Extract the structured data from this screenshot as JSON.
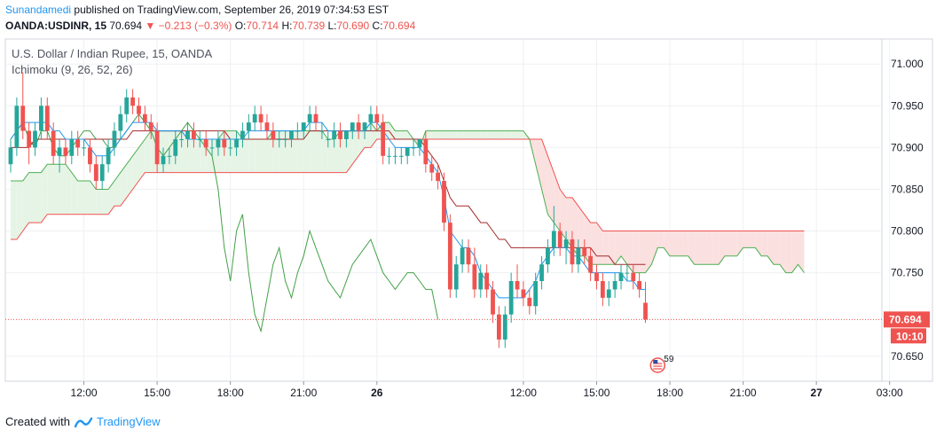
{
  "header": {
    "author": "Sunandamedi",
    "published": "published on TradingView.com, September 26, 2019 07:34:53 EST"
  },
  "symbol": {
    "ticker": "OANDA:USDINR, 15",
    "last": "70.694",
    "arrow": "▼",
    "change": "−0.213 (−0.3%)",
    "o_label": "O:",
    "o": "70.714",
    "h_label": "H:",
    "h": "70.739",
    "l_label": "L:",
    "l": "70.690",
    "c_label": "C:",
    "c": "70.694"
  },
  "footer": {
    "created": "Created with",
    "brand": "TradingView"
  },
  "colors": {
    "up": "#26a69a",
    "down": "#ef5350",
    "tenkan": "#2196f3",
    "kijun": "#a52a2a",
    "spanA": "#4caf50",
    "spanB": "#ef5350",
    "lagging": "#43a047",
    "cloudBull": "#e6f4e6",
    "cloudBear": "#fbe0e0",
    "priceLine": "#ef5350"
  },
  "chart_data": {
    "type": "candlestick",
    "title": "U.S. Dollar / Indian Rupee, 15, OANDA",
    "indicator": "Ichimoku (9, 26, 52, 26)",
    "ylim": [
      70.62,
      71.03
    ],
    "y_ticks": [
      "71.000",
      "70.950",
      "70.900",
      "70.850",
      "70.800",
      "70.750",
      "70.650"
    ],
    "y_tick_values": [
      71.0,
      70.95,
      70.9,
      70.85,
      70.8,
      70.75,
      70.65
    ],
    "x_ticks": [
      "12:00",
      "15:00",
      "18:00",
      "21:00",
      "26",
      "12:00",
      "15:00",
      "18:00",
      "21:00",
      "27",
      "03:00"
    ],
    "x_tick_bars": [
      12,
      24,
      36,
      48,
      60,
      84,
      96,
      108,
      120,
      132,
      144
    ],
    "current_price": 70.694,
    "price_label": "70.694",
    "countdown": "10:10",
    "event_icon_label": "59",
    "candles": [
      [
        70.88,
        70.91,
        70.87,
        70.9
      ],
      [
        70.9,
        70.96,
        70.89,
        70.95
      ],
      [
        70.95,
        70.99,
        70.91,
        70.92
      ],
      [
        70.92,
        70.93,
        70.88,
        70.9
      ],
      [
        70.9,
        70.93,
        70.89,
        70.92
      ],
      [
        70.92,
        70.96,
        70.91,
        70.95
      ],
      [
        70.95,
        70.96,
        70.91,
        70.92
      ],
      [
        70.92,
        70.93,
        70.88,
        70.89
      ],
      [
        70.89,
        70.91,
        70.87,
        70.9
      ],
      [
        70.9,
        70.91,
        70.88,
        70.89
      ],
      [
        70.89,
        70.92,
        70.88,
        70.91
      ],
      [
        70.91,
        70.92,
        70.89,
        70.9
      ],
      [
        70.9,
        70.91,
        70.89,
        70.9
      ],
      [
        70.9,
        70.91,
        70.87,
        70.88
      ],
      [
        70.88,
        70.89,
        70.85,
        70.86
      ],
      [
        70.86,
        70.89,
        70.85,
        70.88
      ],
      [
        70.88,
        70.91,
        70.87,
        70.9
      ],
      [
        70.9,
        70.93,
        70.89,
        70.92
      ],
      [
        70.92,
        70.95,
        70.91,
        70.94
      ],
      [
        70.94,
        70.97,
        70.93,
        70.96
      ],
      [
        70.96,
        70.97,
        70.94,
        70.95
      ],
      [
        70.95,
        70.96,
        70.93,
        70.94
      ],
      [
        70.94,
        70.95,
        70.92,
        70.93
      ],
      [
        70.93,
        70.94,
        70.91,
        70.92
      ],
      [
        70.92,
        70.93,
        70.87,
        70.88
      ],
      [
        70.88,
        70.9,
        70.87,
        70.89
      ],
      [
        70.89,
        70.9,
        70.88,
        70.89
      ],
      [
        70.89,
        70.92,
        70.88,
        70.91
      ],
      [
        70.91,
        70.92,
        70.9,
        70.91
      ],
      [
        70.91,
        70.93,
        70.9,
        70.92
      ],
      [
        70.92,
        70.93,
        70.9,
        70.91
      ],
      [
        70.91,
        70.92,
        70.9,
        70.91
      ],
      [
        70.91,
        70.92,
        70.89,
        70.9
      ],
      [
        70.9,
        70.91,
        70.89,
        70.9
      ],
      [
        70.9,
        70.92,
        70.89,
        70.91
      ],
      [
        70.91,
        70.92,
        70.89,
        70.9
      ],
      [
        70.9,
        70.91,
        70.89,
        70.9
      ],
      [
        70.9,
        70.92,
        70.89,
        70.91
      ],
      [
        70.91,
        70.93,
        70.9,
        70.92
      ],
      [
        70.92,
        70.94,
        70.91,
        70.93
      ],
      [
        70.93,
        70.95,
        70.92,
        70.94
      ],
      [
        70.94,
        70.95,
        70.92,
        70.93
      ],
      [
        70.93,
        70.94,
        70.91,
        70.92
      ],
      [
        70.92,
        70.93,
        70.9,
        70.91
      ],
      [
        70.91,
        70.92,
        70.9,
        70.91
      ],
      [
        70.91,
        70.92,
        70.9,
        70.91
      ],
      [
        70.91,
        70.92,
        70.9,
        70.92
      ],
      [
        70.92,
        70.93,
        70.91,
        70.92
      ],
      [
        70.92,
        70.93,
        70.91,
        70.93
      ],
      [
        70.93,
        70.95,
        70.92,
        70.94
      ],
      [
        70.94,
        70.95,
        70.92,
        70.93
      ],
      [
        70.92,
        70.93,
        70.91,
        70.92
      ],
      [
        70.91,
        70.92,
        70.9,
        70.91
      ],
      [
        70.91,
        70.93,
        70.9,
        70.92
      ],
      [
        70.92,
        70.93,
        70.9,
        70.91
      ],
      [
        70.91,
        70.92,
        70.9,
        70.92
      ],
      [
        70.92,
        70.93,
        70.91,
        70.93
      ],
      [
        70.93,
        70.94,
        70.91,
        70.92
      ],
      [
        70.92,
        70.93,
        70.91,
        70.93
      ],
      [
        70.93,
        70.95,
        70.92,
        70.94
      ],
      [
        70.94,
        70.95,
        70.92,
        70.93
      ],
      [
        70.93,
        70.94,
        70.88,
        70.89
      ],
      [
        70.89,
        70.9,
        70.88,
        70.89
      ],
      [
        70.89,
        70.9,
        70.88,
        70.89
      ],
      [
        70.89,
        70.9,
        70.88,
        70.89
      ],
      [
        70.89,
        70.9,
        70.88,
        70.9
      ],
      [
        70.9,
        70.91,
        70.89,
        70.9
      ],
      [
        70.9,
        70.91,
        70.89,
        70.91
      ],
      [
        70.91,
        70.92,
        70.87,
        70.88
      ],
      [
        70.88,
        70.89,
        70.86,
        70.87
      ],
      [
        70.87,
        70.88,
        70.85,
        70.86
      ],
      [
        70.86,
        70.87,
        70.8,
        70.81
      ],
      [
        70.81,
        70.82,
        70.72,
        70.73
      ],
      [
        70.73,
        70.77,
        70.72,
        70.76
      ],
      [
        70.76,
        70.79,
        70.75,
        70.78
      ],
      [
        70.78,
        70.79,
        70.75,
        70.76
      ],
      [
        70.76,
        70.78,
        70.72,
        70.73
      ],
      [
        70.73,
        70.76,
        70.72,
        70.75
      ],
      [
        70.75,
        70.76,
        70.72,
        70.73
      ],
      [
        70.73,
        70.74,
        70.69,
        70.7
      ],
      [
        70.7,
        70.71,
        70.66,
        70.67
      ],
      [
        70.67,
        70.71,
        70.66,
        70.7
      ],
      [
        70.7,
        70.75,
        70.69,
        70.74
      ],
      [
        70.74,
        70.76,
        70.72,
        70.73
      ],
      [
        70.73,
        70.74,
        70.71,
        70.72
      ],
      [
        70.72,
        70.73,
        70.7,
        70.71
      ],
      [
        70.71,
        70.75,
        70.7,
        70.74
      ],
      [
        70.74,
        70.77,
        70.73,
        70.76
      ],
      [
        70.76,
        70.79,
        70.75,
        70.78
      ],
      [
        70.78,
        70.83,
        70.77,
        70.8
      ],
      [
        70.8,
        70.81,
        70.77,
        70.78
      ],
      [
        70.78,
        70.8,
        70.76,
        70.79
      ],
      [
        70.79,
        70.8,
        70.75,
        70.76
      ],
      [
        70.76,
        70.79,
        70.75,
        70.78
      ],
      [
        70.78,
        70.79,
        70.76,
        70.77
      ],
      [
        70.77,
        70.78,
        70.74,
        70.75
      ],
      [
        70.75,
        70.76,
        70.73,
        70.74
      ],
      [
        70.74,
        70.75,
        70.71,
        70.72
      ],
      [
        70.72,
        70.74,
        70.71,
        70.73
      ],
      [
        70.73,
        70.75,
        70.72,
        70.74
      ],
      [
        70.74,
        70.76,
        70.73,
        70.75
      ],
      [
        70.75,
        70.76,
        70.74,
        70.75
      ],
      [
        70.75,
        70.76,
        70.73,
        70.74
      ],
      [
        70.74,
        70.75,
        70.72,
        70.73
      ],
      [
        70.714,
        70.739,
        70.69,
        70.694
      ]
    ],
    "tenkan": [
      70.91,
      70.92,
      70.93,
      70.93,
      70.93,
      70.93,
      70.93,
      70.92,
      70.92,
      70.91,
      70.91,
      70.91,
      70.91,
      70.9,
      70.89,
      70.89,
      70.89,
      70.9,
      70.91,
      70.92,
      70.93,
      70.93,
      70.93,
      70.93,
      70.92,
      70.92,
      70.92,
      70.92,
      70.92,
      70.91,
      70.91,
      70.91,
      70.91,
      70.91,
      70.91,
      70.91,
      70.91,
      70.91,
      70.91,
      70.92,
      70.92,
      70.92,
      70.92,
      70.92,
      70.92,
      70.92,
      70.92,
      70.92,
      70.92,
      70.93,
      70.93,
      70.93,
      70.92,
      70.92,
      70.92,
      70.92,
      70.92,
      70.92,
      70.92,
      70.93,
      70.93,
      70.92,
      70.91,
      70.9,
      70.9,
      70.9,
      70.9,
      70.9,
      70.89,
      70.88,
      70.87,
      70.84,
      70.8,
      70.79,
      70.78,
      70.78,
      70.77,
      70.75,
      70.74,
      70.73,
      70.72,
      70.72,
      70.72,
      70.72,
      70.72,
      70.73,
      70.74,
      70.76,
      70.77,
      70.78,
      70.78,
      70.78,
      70.77,
      70.77,
      70.76,
      70.75,
      70.75,
      70.75,
      70.75,
      70.75,
      70.75,
      70.74,
      70.74,
      70.73,
      70.73
    ],
    "kijun": [
      70.9,
      70.9,
      70.9,
      70.9,
      70.91,
      70.91,
      70.91,
      70.91,
      70.91,
      70.91,
      70.91,
      70.91,
      70.91,
      70.91,
      70.91,
      70.91,
      70.91,
      70.91,
      70.91,
      70.91,
      70.92,
      70.92,
      70.92,
      70.92,
      70.92,
      70.92,
      70.92,
      70.92,
      70.92,
      70.92,
      70.92,
      70.92,
      70.92,
      70.92,
      70.92,
      70.92,
      70.91,
      70.91,
      70.91,
      70.91,
      70.91,
      70.91,
      70.91,
      70.91,
      70.91,
      70.91,
      70.91,
      70.91,
      70.91,
      70.92,
      70.92,
      70.92,
      70.92,
      70.92,
      70.92,
      70.92,
      70.92,
      70.92,
      70.92,
      70.92,
      70.92,
      70.92,
      70.92,
      70.91,
      70.91,
      70.91,
      70.91,
      70.91,
      70.9,
      70.89,
      70.88,
      70.86,
      70.84,
      70.83,
      70.83,
      70.83,
      70.82,
      70.81,
      70.81,
      70.8,
      70.79,
      70.79,
      70.78,
      70.78,
      70.78,
      70.78,
      70.78,
      70.78,
      70.78,
      70.78,
      70.78,
      70.78,
      70.78,
      70.78,
      70.78,
      70.78,
      70.77,
      70.77,
      70.77,
      70.76,
      70.76,
      70.76,
      70.76,
      70.76,
      70.76
    ],
    "lagging": [
      70.91,
      70.92,
      70.93,
      70.91,
      70.9,
      70.92,
      70.92,
      70.9,
      70.89,
      70.89,
      70.9,
      70.91,
      70.92,
      70.92,
      70.91,
      70.91,
      70.9,
      70.9,
      70.91,
      70.92,
      70.93,
      70.94,
      70.93,
      70.92,
      70.9,
      70.89,
      70.9,
      70.91,
      70.92,
      70.93,
      70.92,
      70.91,
      70.9,
      70.89,
      70.85,
      70.78,
      70.74,
      70.8,
      70.82,
      70.75,
      70.7,
      70.68,
      70.72,
      70.76,
      70.78,
      70.74,
      70.72,
      70.75,
      70.77,
      70.8,
      70.78,
      70.76,
      70.74,
      70.73,
      70.72,
      70.74,
      70.76,
      70.77,
      70.78,
      70.79,
      70.77,
      70.75,
      70.74,
      70.73,
      70.74,
      70.75,
      70.75,
      70.74,
      70.73,
      70.73,
      70.694
    ],
    "spanA": [
      70.86,
      70.86,
      70.86,
      70.87,
      70.87,
      70.87,
      70.88,
      70.88,
      70.88,
      70.88,
      70.87,
      70.86,
      70.86,
      70.86,
      70.85,
      70.85,
      70.85,
      70.86,
      70.87,
      70.88,
      70.89,
      70.9,
      70.91,
      70.92,
      70.92,
      70.92,
      70.92,
      70.92,
      70.92,
      70.91,
      70.91,
      70.91,
      70.91,
      70.91,
      70.91,
      70.92,
      70.92,
      70.92,
      70.91,
      70.91,
      70.91,
      70.91,
      70.91,
      70.92,
      70.92,
      70.92,
      70.92,
      70.92,
      70.92,
      70.92,
      70.92,
      70.92,
      70.91,
      70.91,
      70.92,
      70.92,
      70.92,
      70.92,
      70.92,
      70.93,
      70.92,
      70.93,
      70.93,
      70.92,
      70.92,
      70.92,
      70.91,
      70.9,
      70.92,
      70.92,
      70.92,
      70.92,
      70.92,
      70.92,
      70.92,
      70.92,
      70.92,
      70.92,
      70.92,
      70.92,
      70.92,
      70.92,
      70.92,
      70.92,
      70.92,
      70.91,
      70.88,
      70.85,
      70.82,
      70.81,
      70.8,
      70.79,
      70.78,
      70.77,
      70.77,
      70.76,
      70.76,
      70.76,
      70.76,
      70.76,
      70.77,
      70.76,
      70.75,
      70.75,
      70.75,
      70.76,
      70.78,
      70.78,
      70.77,
      70.77,
      70.77,
      70.77,
      70.76,
      70.76,
      70.76,
      70.76,
      70.76,
      70.77,
      70.77,
      70.77,
      70.78,
      70.78,
      70.78,
      70.77,
      70.77,
      70.76,
      70.76,
      70.75,
      70.75,
      70.76,
      70.75
    ],
    "spanB": [
      70.79,
      70.79,
      70.8,
      70.81,
      70.81,
      70.81,
      70.82,
      70.82,
      70.82,
      70.82,
      70.82,
      70.82,
      70.82,
      70.82,
      70.82,
      70.82,
      70.82,
      70.83,
      70.83,
      70.84,
      70.85,
      70.86,
      70.87,
      70.87,
      70.87,
      70.87,
      70.87,
      70.87,
      70.87,
      70.87,
      70.87,
      70.87,
      70.87,
      70.87,
      70.87,
      70.87,
      70.87,
      70.87,
      70.87,
      70.87,
      70.87,
      70.87,
      70.87,
      70.87,
      70.87,
      70.87,
      70.87,
      70.87,
      70.87,
      70.87,
      70.87,
      70.87,
      70.87,
      70.87,
      70.87,
      70.87,
      70.88,
      70.89,
      70.9,
      70.9,
      70.91,
      70.91,
      70.91,
      70.91,
      70.91,
      70.91,
      70.91,
      70.91,
      70.91,
      70.91,
      70.91,
      70.91,
      70.91,
      70.91,
      70.91,
      70.91,
      70.91,
      70.91,
      70.91,
      70.91,
      70.91,
      70.91,
      70.91,
      70.91,
      70.91,
      70.91,
      70.91,
      70.91,
      70.89,
      70.87,
      70.85,
      70.84,
      70.84,
      70.83,
      70.82,
      70.81,
      70.81,
      70.8,
      70.8,
      70.8,
      70.8,
      70.8,
      70.8,
      70.8,
      70.8,
      70.8,
      70.8,
      70.8,
      70.8,
      70.8,
      70.8,
      70.8,
      70.8,
      70.8,
      70.8,
      70.8,
      70.8,
      70.8,
      70.8,
      70.8,
      70.8,
      70.8,
      70.8,
      70.8,
      70.8,
      70.8,
      70.8,
      70.8,
      70.8,
      70.8,
      70.8
    ]
  }
}
